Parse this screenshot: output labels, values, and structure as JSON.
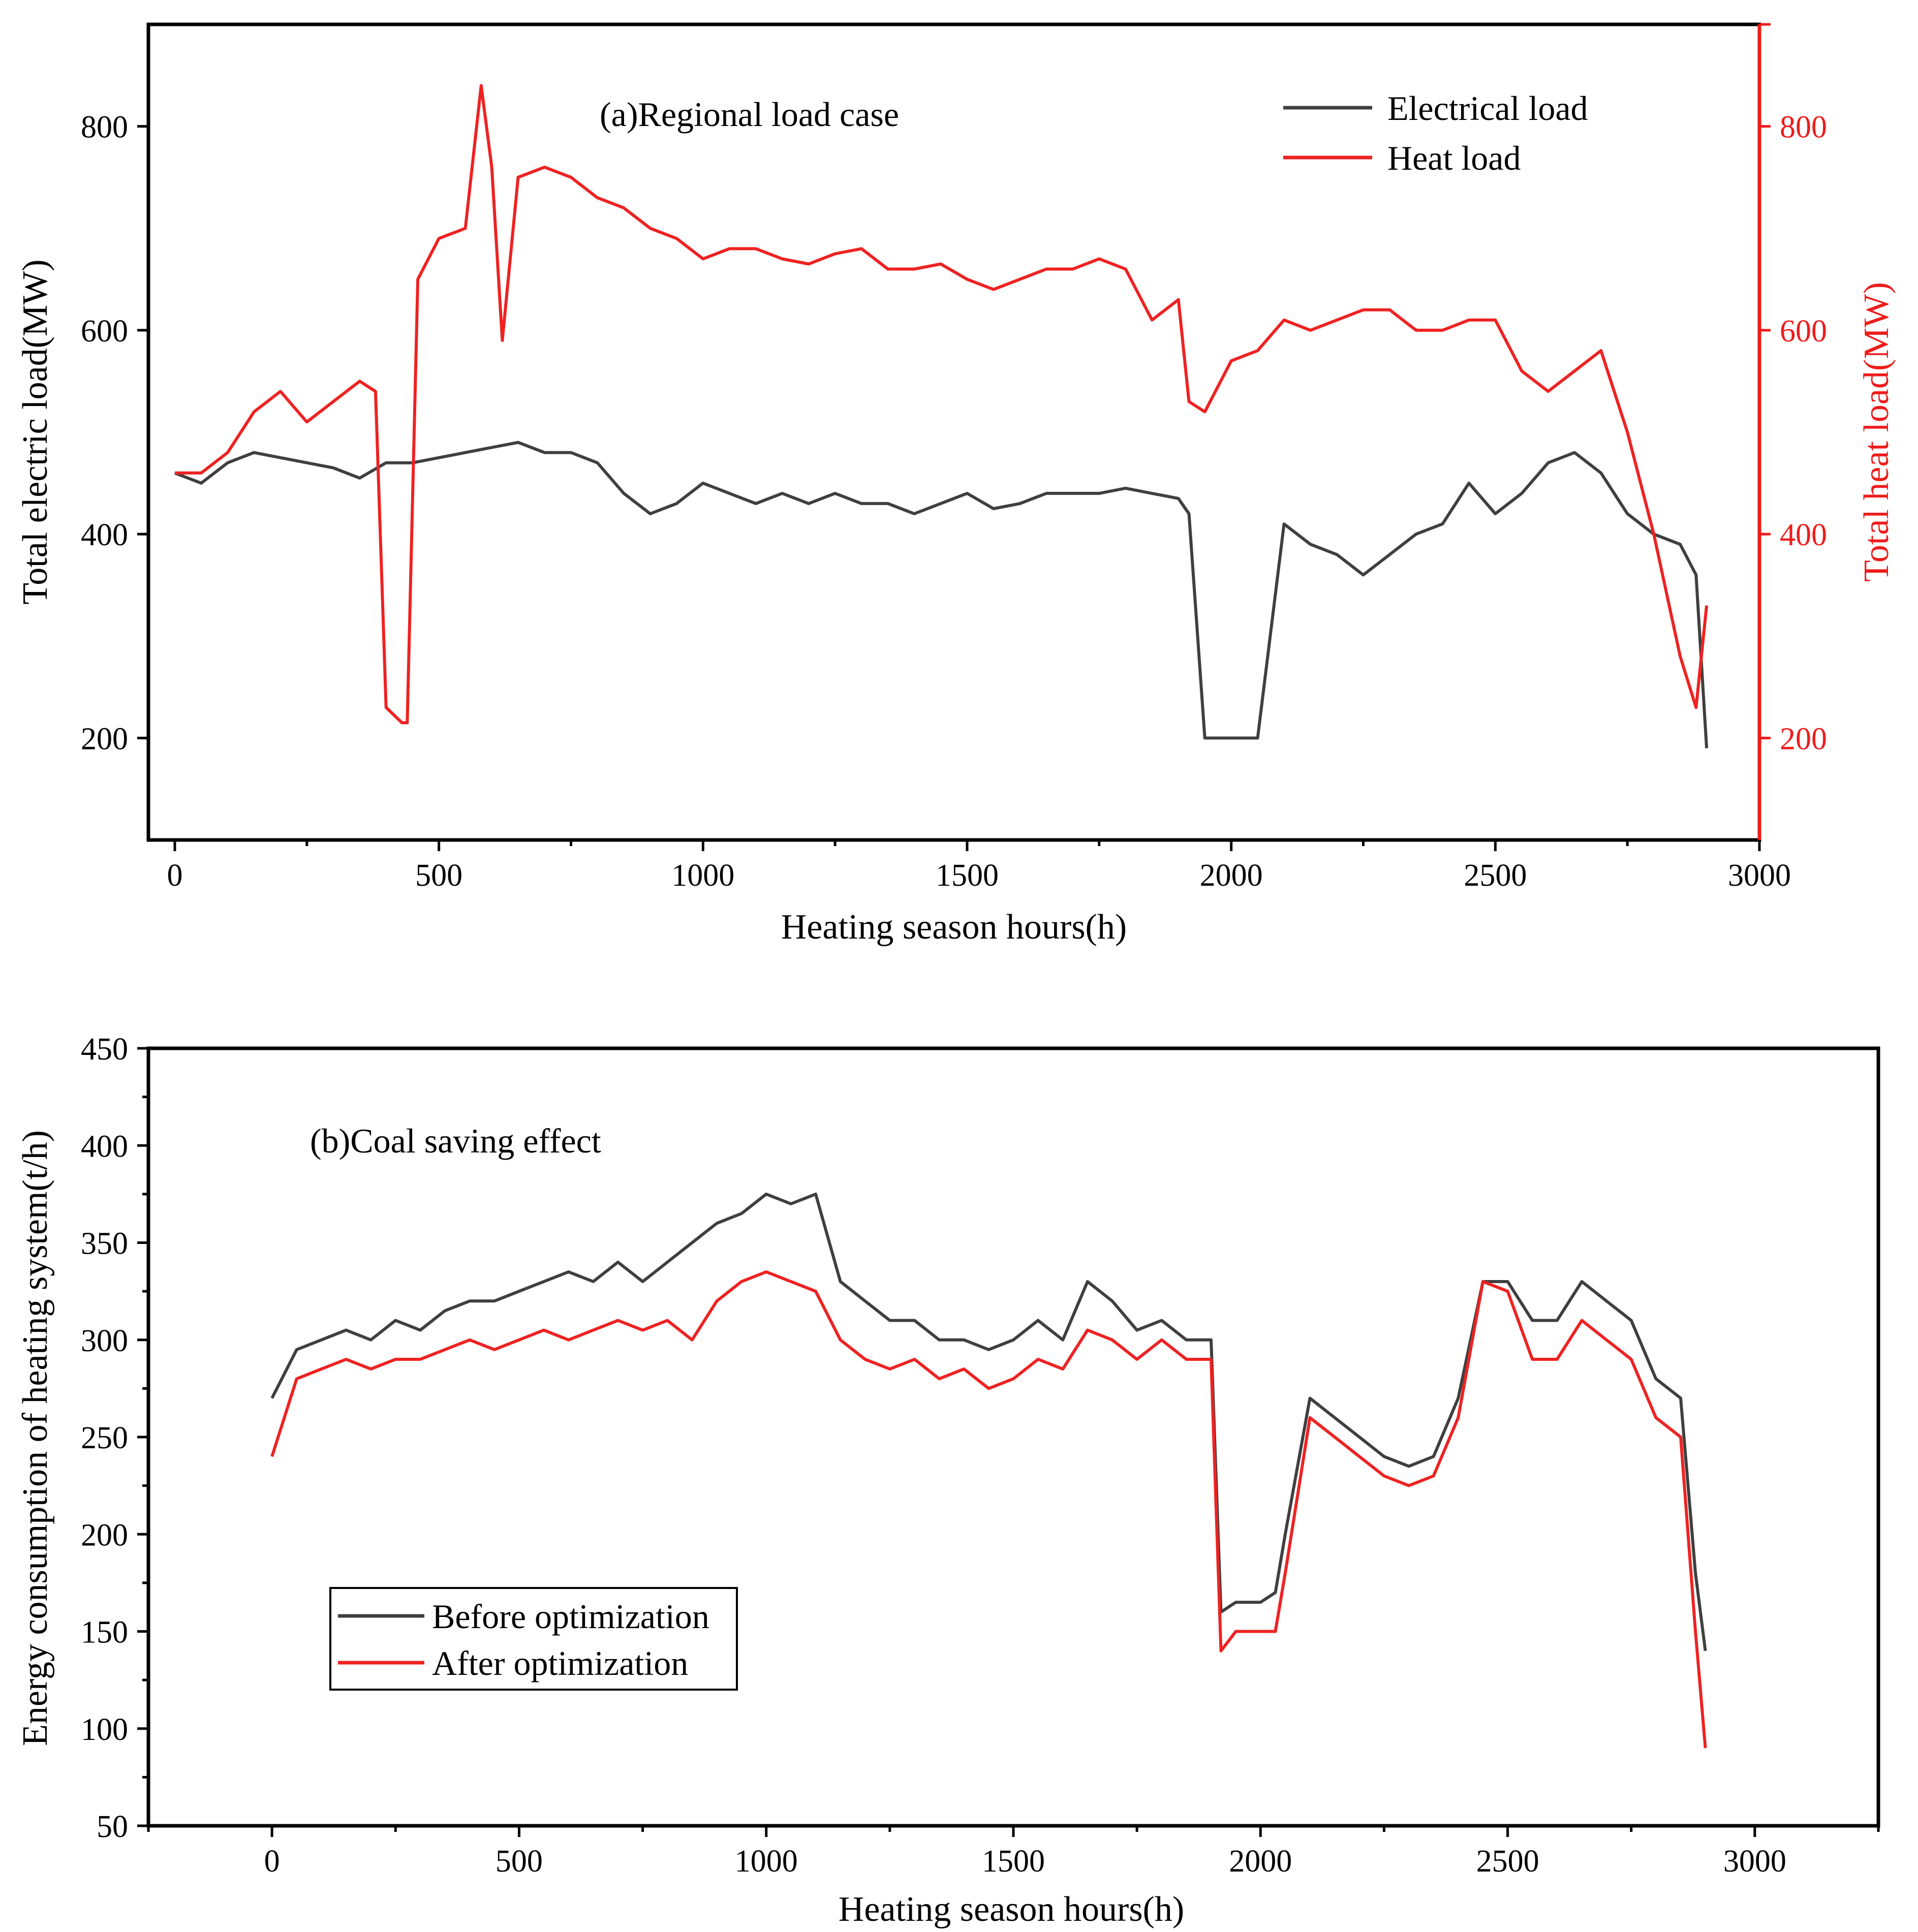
{
  "colors": {
    "electrical": "#3f3f3f",
    "heat": "#ee2222",
    "before": "#3f3f3f",
    "after": "#ee2222",
    "right_axis": "#ee1c1c"
  },
  "chart_data": [
    {
      "type": "line",
      "title": "(a)Regional load case",
      "xlabel": "Heating season hours(h)",
      "ylabel": "Total electric load(MW)",
      "ylabel_right": "Total heat load(MW)",
      "xlim": [
        -50,
        3000
      ],
      "ylim": [
        100,
        900
      ],
      "ylim_right": [
        100,
        900
      ],
      "xticks": [
        "0",
        "500",
        "1000",
        "1500",
        "2000",
        "2500",
        "3000"
      ],
      "yticks": [
        "200",
        "400",
        "600",
        "800"
      ],
      "yticks_right": [
        "200",
        "400",
        "600",
        "800"
      ],
      "legend": [
        "Electrical load",
        "Heat load"
      ],
      "series": [
        {
          "name": "Electrical load",
          "x": [
            0,
            50,
            100,
            150,
            200,
            250,
            300,
            350,
            400,
            450,
            500,
            550,
            600,
            650,
            700,
            750,
            800,
            850,
            900,
            950,
            1000,
            1050,
            1100,
            1150,
            1200,
            1250,
            1300,
            1350,
            1400,
            1450,
            1500,
            1550,
            1600,
            1650,
            1700,
            1750,
            1800,
            1850,
            1900,
            1920,
            1950,
            2000,
            2050,
            2100,
            2150,
            2200,
            2250,
            2300,
            2350,
            2400,
            2450,
            2500,
            2550,
            2600,
            2650,
            2700,
            2750,
            2800,
            2850,
            2880,
            2900
          ],
          "values": [
            460,
            450,
            470,
            480,
            475,
            470,
            465,
            455,
            470,
            470,
            475,
            480,
            485,
            490,
            480,
            480,
            470,
            440,
            420,
            430,
            450,
            440,
            430,
            440,
            430,
            440,
            430,
            430,
            420,
            430,
            440,
            425,
            430,
            440,
            440,
            440,
            445,
            440,
            435,
            420,
            200,
            200,
            200,
            410,
            390,
            380,
            360,
            380,
            400,
            410,
            450,
            420,
            440,
            470,
            480,
            460,
            420,
            400,
            390,
            360,
            190
          ]
        },
        {
          "name": "Heat load",
          "x": [
            0,
            50,
            100,
            150,
            200,
            250,
            300,
            350,
            380,
            400,
            430,
            440,
            460,
            500,
            550,
            580,
            600,
            620,
            650,
            700,
            750,
            800,
            850,
            900,
            950,
            1000,
            1050,
            1100,
            1150,
            1200,
            1250,
            1300,
            1350,
            1400,
            1450,
            1500,
            1550,
            1600,
            1650,
            1700,
            1750,
            1800,
            1850,
            1900,
            1920,
            1950,
            2000,
            2050,
            2100,
            2150,
            2200,
            2250,
            2300,
            2350,
            2400,
            2450,
            2500,
            2550,
            2600,
            2650,
            2700,
            2750,
            2800,
            2850,
            2880,
            2900
          ],
          "values": [
            460,
            460,
            480,
            520,
            540,
            510,
            530,
            550,
            540,
            230,
            215,
            215,
            650,
            690,
            700,
            840,
            760,
            590,
            750,
            760,
            750,
            730,
            720,
            700,
            690,
            670,
            680,
            680,
            670,
            665,
            675,
            680,
            660,
            660,
            665,
            650,
            640,
            650,
            660,
            660,
            670,
            660,
            610,
            630,
            530,
            520,
            570,
            580,
            610,
            600,
            610,
            620,
            620,
            600,
            600,
            610,
            610,
            560,
            540,
            560,
            580,
            500,
            400,
            280,
            230,
            330
          ]
        }
      ]
    },
    {
      "type": "line",
      "title": "(b)Coal saving effect",
      "xlabel": "Heating season hours(h)",
      "ylabel": "Energy consumption of heating system(t/h)",
      "xlim": [
        -250,
        3250
      ],
      "ylim": [
        50,
        450
      ],
      "xticks": [
        "0",
        "500",
        "1000",
        "1500",
        "2000",
        "2500",
        "3000"
      ],
      "yticks": [
        "50",
        "100",
        "150",
        "200",
        "250",
        "300",
        "350",
        "400",
        "450"
      ],
      "legend": [
        "Before optimization",
        "After optimization"
      ],
      "series": [
        {
          "name": "Before optimization",
          "x": [
            0,
            50,
            100,
            150,
            200,
            250,
            300,
            350,
            400,
            450,
            500,
            550,
            600,
            650,
            700,
            750,
            800,
            850,
            900,
            950,
            1000,
            1050,
            1100,
            1150,
            1200,
            1250,
            1300,
            1350,
            1400,
            1450,
            1500,
            1550,
            1600,
            1650,
            1700,
            1750,
            1800,
            1850,
            1900,
            1920,
            1950,
            2000,
            2030,
            2050,
            2100,
            2150,
            2200,
            2250,
            2300,
            2350,
            2400,
            2450,
            2500,
            2550,
            2600,
            2650,
            2700,
            2750,
            2800,
            2850,
            2880,
            2900
          ],
          "values": [
            270,
            295,
            300,
            305,
            300,
            310,
            305,
            315,
            320,
            320,
            325,
            330,
            335,
            330,
            340,
            330,
            340,
            350,
            360,
            365,
            375,
            370,
            375,
            330,
            320,
            310,
            310,
            300,
            300,
            295,
            300,
            310,
            300,
            330,
            320,
            305,
            310,
            300,
            300,
            160,
            165,
            165,
            170,
            200,
            270,
            260,
            250,
            240,
            235,
            240,
            270,
            330,
            330,
            310,
            310,
            330,
            320,
            310,
            280,
            270,
            180,
            140
          ]
        },
        {
          "name": "After optimization",
          "x": [
            0,
            50,
            100,
            150,
            200,
            250,
            300,
            350,
            400,
            450,
            500,
            550,
            600,
            650,
            700,
            750,
            800,
            850,
            900,
            950,
            1000,
            1050,
            1100,
            1150,
            1200,
            1250,
            1300,
            1350,
            1400,
            1450,
            1500,
            1550,
            1600,
            1650,
            1700,
            1750,
            1800,
            1850,
            1900,
            1920,
            1950,
            2000,
            2030,
            2050,
            2100,
            2150,
            2200,
            2250,
            2300,
            2350,
            2400,
            2450,
            2500,
            2550,
            2600,
            2650,
            2700,
            2750,
            2800,
            2850,
            2880,
            2900
          ],
          "values": [
            240,
            280,
            285,
            290,
            285,
            290,
            290,
            295,
            300,
            295,
            300,
            305,
            300,
            305,
            310,
            305,
            310,
            300,
            320,
            330,
            335,
            330,
            325,
            300,
            290,
            285,
            290,
            280,
            285,
            275,
            280,
            290,
            285,
            305,
            300,
            290,
            300,
            290,
            290,
            140,
            150,
            150,
            150,
            180,
            260,
            250,
            240,
            230,
            225,
            230,
            260,
            330,
            325,
            290,
            290,
            310,
            300,
            290,
            260,
            250,
            150,
            90
          ]
        }
      ]
    }
  ]
}
